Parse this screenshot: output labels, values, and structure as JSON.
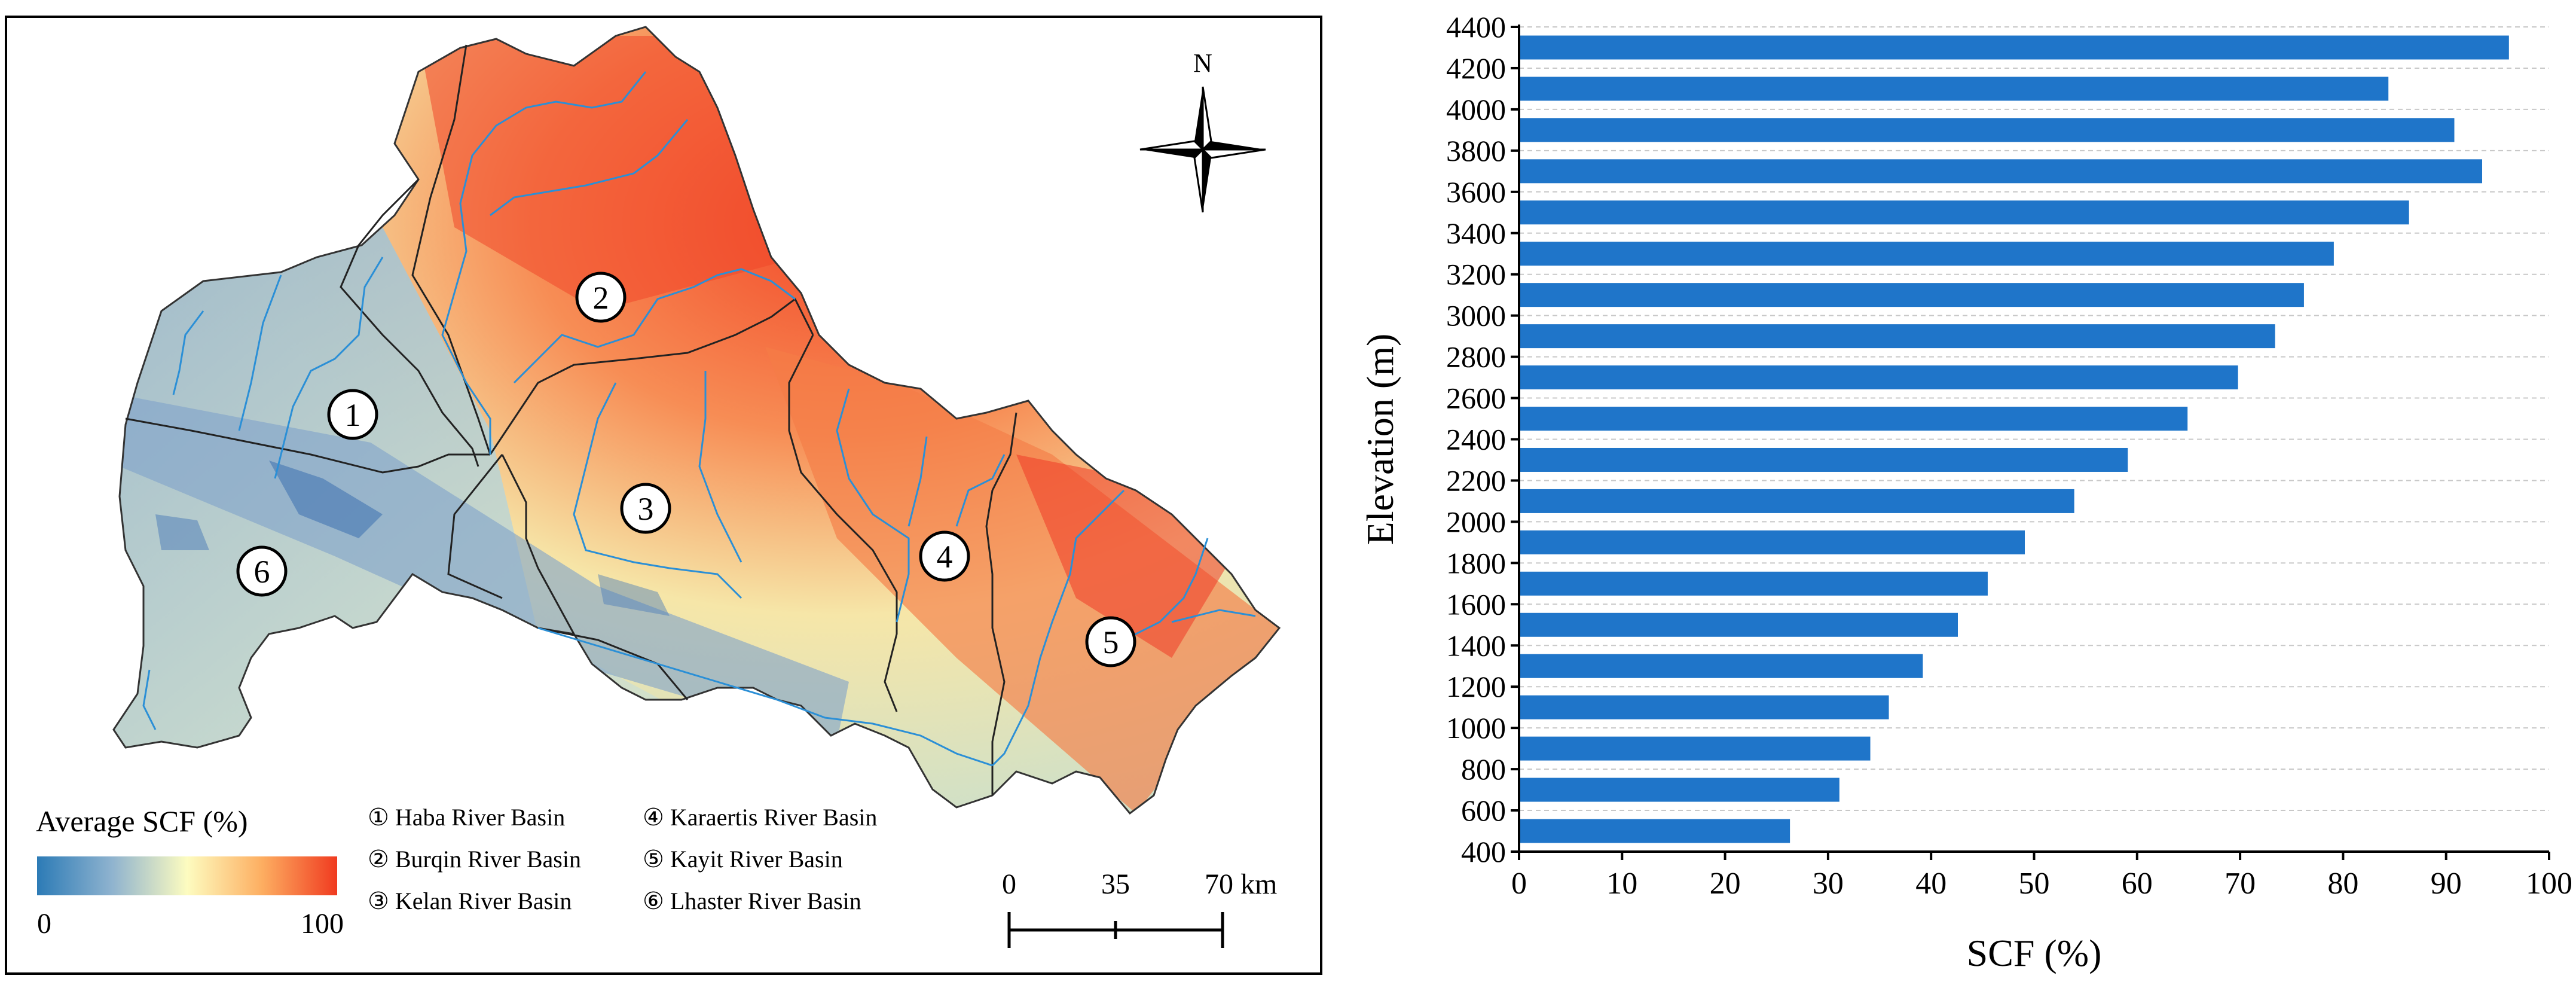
{
  "map": {
    "legend_title": "Average SCF (%)",
    "legend_min": "0",
    "legend_max": "100",
    "legend_colors": [
      "#2c7bb6",
      "#8fb3cf",
      "#fdfcc0",
      "#fdae61",
      "#f03b20"
    ],
    "north_label": "N",
    "scale_ticks": [
      "0",
      "35",
      "70 km"
    ],
    "basins": [
      {
        "marker": "1",
        "label": "① Haba River Basin"
      },
      {
        "marker": "2",
        "label": "② Burqin River Basin"
      },
      {
        "marker": "3",
        "label": "③ Kelan River Basin"
      },
      {
        "marker": "4",
        "label": "④ Karaertis River Basin"
      },
      {
        "marker": "5",
        "label": "⑤ Kayit River Basin"
      },
      {
        "marker": "6",
        "label": "⑥ Lhaster River Basin"
      }
    ],
    "river_color": "#2b8fd6"
  },
  "chart_data": {
    "type": "bar",
    "orientation": "horizontal",
    "xlabel": "SCF (%)",
    "ylabel": "Elevation (m)",
    "xlim": [
      0,
      100
    ],
    "x_ticks": [
      0,
      10,
      20,
      30,
      40,
      50,
      60,
      70,
      80,
      90,
      100
    ],
    "ylim": [
      400,
      4400
    ],
    "y_ticks": [
      400,
      600,
      800,
      1000,
      1200,
      1400,
      1600,
      1800,
      2000,
      2200,
      2400,
      2600,
      2800,
      3000,
      3200,
      3400,
      3600,
      3800,
      4000,
      4200,
      4400
    ],
    "bar_color": "#1f75c9",
    "grid": "horizontal dashed",
    "bars": [
      {
        "elevation": 500,
        "value": 26.3
      },
      {
        "elevation": 700,
        "value": 31.1
      },
      {
        "elevation": 900,
        "value": 34.1
      },
      {
        "elevation": 1100,
        "value": 35.9
      },
      {
        "elevation": 1300,
        "value": 39.2
      },
      {
        "elevation": 1500,
        "value": 42.6
      },
      {
        "elevation": 1700,
        "value": 45.5
      },
      {
        "elevation": 1900,
        "value": 49.1
      },
      {
        "elevation": 2100,
        "value": 53.9
      },
      {
        "elevation": 2300,
        "value": 59.1
      },
      {
        "elevation": 2500,
        "value": 64.9
      },
      {
        "elevation": 2700,
        "value": 69.8
      },
      {
        "elevation": 2900,
        "value": 73.4
      },
      {
        "elevation": 3100,
        "value": 76.2
      },
      {
        "elevation": 3300,
        "value": 79.1
      },
      {
        "elevation": 3500,
        "value": 86.4
      },
      {
        "elevation": 3700,
        "value": 93.5
      },
      {
        "elevation": 3900,
        "value": 90.8
      },
      {
        "elevation": 4100,
        "value": 84.4
      },
      {
        "elevation": 4300,
        "value": 96.1
      }
    ]
  }
}
